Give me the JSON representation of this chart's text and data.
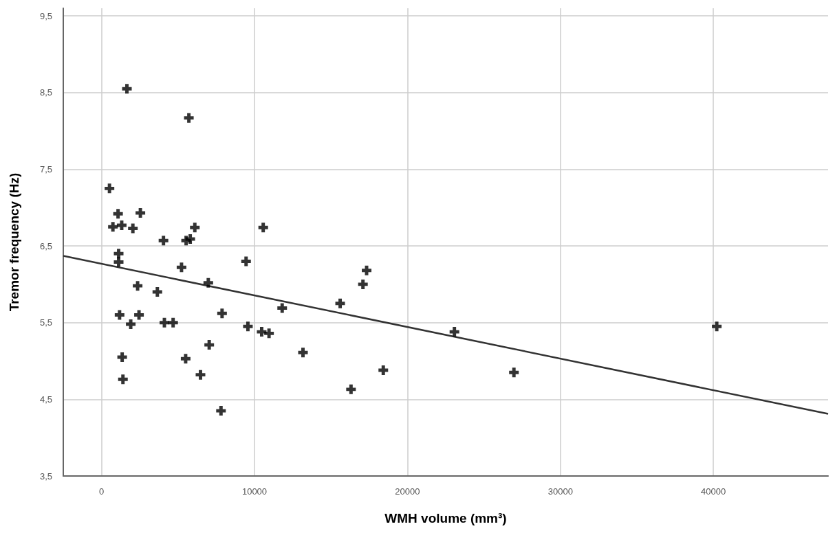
{
  "chart_data": {
    "type": "scatter",
    "xlabel": "WMH volume (mm³)",
    "ylabel": "Tremor frequency (Hz)",
    "xlim": [
      -2500,
      47500
    ],
    "xticks": [
      0,
      10000,
      20000,
      30000,
      40000
    ],
    "ylim": [
      3.5,
      9.6
    ],
    "yticks": [
      {
        "value": 3.5,
        "label": "3,5"
      },
      {
        "value": 4.5,
        "label": "4,5"
      },
      {
        "value": 5.5,
        "label": "5,5"
      },
      {
        "value": 6.5,
        "label": "6,5"
      },
      {
        "value": 7.5,
        "label": "7,5"
      },
      {
        "value": 8.5,
        "label": "8,5"
      },
      {
        "value": 9.5,
        "label": "9,5"
      }
    ],
    "grid": true,
    "marker": "cross",
    "series": [
      {
        "color": "#000000",
        "x": [
          1660,
          5710,
          520,
          1080,
          2540,
          745,
          1320,
          2050,
          6100,
          10570,
          4050,
          5530,
          5800,
          1120,
          1120,
          9450,
          5230,
          6980,
          2360,
          3650,
          1180,
          2450,
          7880,
          1910,
          4110,
          4680,
          9570,
          10470,
          10950,
          11810,
          7040,
          1350,
          5500,
          1400,
          6470,
          7810,
          17330,
          17090,
          15600,
          13170,
          18420,
          16310,
          23070,
          26960,
          40220
        ],
        "values": [
          8.55,
          8.17,
          7.25,
          6.92,
          6.93,
          6.75,
          6.77,
          6.73,
          6.74,
          6.74,
          6.57,
          6.57,
          6.59,
          6.4,
          6.29,
          6.3,
          6.22,
          6.02,
          5.98,
          5.9,
          5.6,
          5.6,
          5.62,
          5.48,
          5.5,
          5.5,
          5.45,
          5.38,
          5.36,
          5.69,
          5.21,
          5.05,
          5.03,
          4.76,
          4.82,
          4.35,
          6.18,
          6.0,
          5.75,
          5.11,
          4.88,
          4.63,
          5.38,
          4.85,
          5.45
        ]
      },
      {
        "type": "line",
        "color": "#333333",
        "marker": "none",
        "line_style": "solid",
        "x": [
          -2500,
          47500
        ],
        "values": [
          6.37,
          4.31
        ]
      }
    ]
  }
}
